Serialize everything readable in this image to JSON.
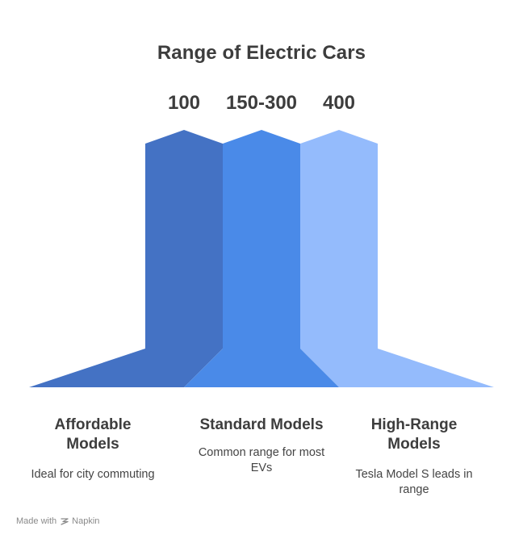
{
  "title": "Range of Electric Cars",
  "colors": {
    "affordable": "#4472C4",
    "standard": "#4A8AE8",
    "high_range": "#94BBFC"
  },
  "segments": [
    {
      "value": "100",
      "title": "Affordable Models",
      "description": "Ideal for city commuting"
    },
    {
      "value": "150-300",
      "title": "Standard Models",
      "description": "Common range for most EVs"
    },
    {
      "value": "400",
      "title": "High-Range Models",
      "description": "Tesla Model S leads in range"
    }
  ],
  "footer": {
    "made_with": "Made with",
    "brand": "Napkin"
  }
}
